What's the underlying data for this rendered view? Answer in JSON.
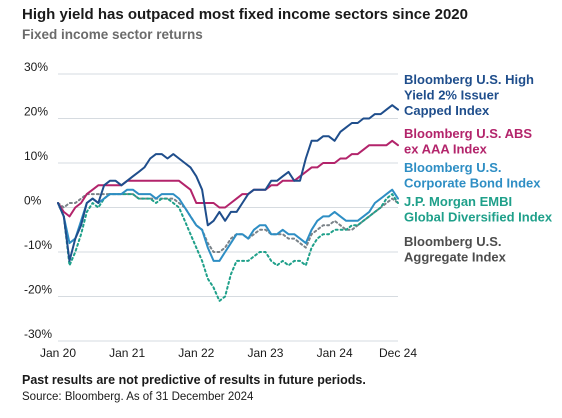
{
  "chart_data": {
    "type": "line",
    "title": "High yield has outpaced most fixed income sectors since 2020",
    "subtitle": "Fixed income sector returns",
    "note": "Past results are not predictive of results in future periods.",
    "source": "Source: Bloomberg. As of 31 December 2024",
    "x_tick_labels": [
      "Jan 20",
      "Jan 21",
      "Jan 22",
      "Jan 23",
      "Jan 24",
      "Dec 24"
    ],
    "y_tick_labels": [
      "30%",
      "20%",
      "10%",
      "0%",
      "-10%",
      "-20%",
      "-30%"
    ],
    "y_ticks": [
      30,
      20,
      10,
      0,
      -10,
      -20,
      -30
    ],
    "ylim": [
      -30,
      30
    ],
    "xlim": [
      0,
      59
    ],
    "x_tick_positions": [
      0,
      12,
      24,
      36,
      48,
      59
    ],
    "grid": "horizontal",
    "legend_placement": "right",
    "x": [
      0,
      1,
      2,
      3,
      4,
      5,
      6,
      7,
      8,
      9,
      10,
      11,
      12,
      13,
      14,
      15,
      16,
      17,
      18,
      19,
      20,
      21,
      22,
      23,
      24,
      25,
      26,
      27,
      28,
      29,
      30,
      31,
      32,
      33,
      34,
      35,
      36,
      37,
      38,
      39,
      40,
      41,
      42,
      43,
      44,
      45,
      46,
      47,
      48,
      49,
      50,
      51,
      52,
      53,
      54,
      55,
      56,
      57,
      58,
      59
    ],
    "series": [
      {
        "name": "Bloomberg U.S. High Yield 2% Issuer Capped Index",
        "color": "#1f4e8c",
        "style": "solid",
        "values": [
          1,
          -2,
          -12,
          -7,
          -4,
          1,
          2,
          1,
          5,
          6,
          6,
          5,
          6,
          7,
          8,
          9,
          11,
          12,
          12,
          11,
          12,
          11,
          10,
          9,
          7,
          4,
          -4,
          -3,
          -1,
          -3,
          -1,
          -1,
          1,
          3,
          4,
          4,
          4,
          6,
          6,
          7,
          8,
          6,
          6,
          11,
          15,
          15,
          16,
          16,
          15,
          17,
          18,
          19,
          19,
          20,
          20,
          21,
          21,
          22,
          23,
          22
        ]
      },
      {
        "name": "Bloomberg U.S. ABS ex AAA Index",
        "color": "#b3246b",
        "style": "solid",
        "values": [
          1,
          -1,
          -2,
          0,
          1,
          3,
          4,
          5,
          5,
          5,
          5,
          5,
          6,
          6,
          6,
          6,
          6,
          6,
          6,
          6,
          6,
          6,
          5,
          4,
          1,
          1,
          1,
          1,
          0,
          0,
          1,
          2,
          3,
          3,
          4,
          4,
          4,
          5,
          5,
          6,
          6,
          6,
          7,
          8,
          9,
          9,
          10,
          10,
          10,
          11,
          11,
          12,
          12,
          13,
          14,
          14,
          14,
          14,
          15,
          14
        ]
      },
      {
        "name": "Bloomberg U.S. Corporate Bond Index",
        "color": "#2e8ec4",
        "style": "solid",
        "values": [
          1,
          -2,
          -8,
          -7,
          -3,
          1,
          2,
          1,
          2,
          3,
          3,
          3,
          4,
          4,
          3,
          3,
          3,
          2,
          3,
          3,
          3,
          2,
          0,
          -2,
          -4,
          -5,
          -9,
          -12,
          -12,
          -10,
          -8,
          -6,
          -6,
          -7,
          -5,
          -4,
          -4,
          -6,
          -6,
          -5,
          -6,
          -6,
          -7,
          -8,
          -5,
          -3,
          -2,
          -2,
          -1,
          -2,
          -3,
          -3,
          -3,
          -2,
          -1,
          1,
          2,
          3,
          4,
          2
        ]
      },
      {
        "name": "J.P. Morgan EMBI Global Diversified Index",
        "color": "#1fa08a",
        "style": "dotted",
        "values": [
          1,
          -2,
          -13,
          -10,
          -6,
          -1,
          1,
          0,
          2,
          3,
          3,
          3,
          3,
          3,
          2,
          2,
          2,
          1,
          2,
          2,
          1,
          0,
          -3,
          -6,
          -9,
          -12,
          -16,
          -18,
          -21,
          -20,
          -15,
          -12,
          -12,
          -12,
          -11,
          -10,
          -10,
          -12,
          -13,
          -12,
          -13,
          -12,
          -12,
          -13,
          -9,
          -7,
          -6,
          -6,
          -5,
          -5,
          -5,
          -4,
          -4,
          -3,
          -2,
          -1,
          0,
          2,
          3,
          1
        ]
      },
      {
        "name": "Bloomberg U.S. Aggregate Index",
        "color": "#7a8288",
        "style": "dotted",
        "values": [
          1,
          0,
          1,
          1,
          2,
          3,
          3,
          3,
          3,
          3,
          3,
          3,
          3,
          3,
          2,
          2,
          2,
          2,
          2,
          2,
          2,
          1,
          0,
          -2,
          -4,
          -5,
          -8,
          -10,
          -10,
          -9,
          -7,
          -6,
          -6,
          -7,
          -6,
          -5,
          -5,
          -6,
          -6,
          -6,
          -7,
          -7,
          -8,
          -9,
          -6,
          -5,
          -4,
          -4,
          -3,
          -4,
          -5,
          -5,
          -4,
          -3,
          -2,
          -1,
          0,
          1,
          2,
          1
        ]
      }
    ],
    "legend": [
      {
        "lines": [
          "Bloomberg U.S. High",
          "Yield 2% Issuer",
          "Capped Index"
        ],
        "color": "#1f4e8c"
      },
      {
        "lines": [
          "Bloomberg U.S. ABS",
          "ex AAA Index"
        ],
        "color": "#b3246b"
      },
      {
        "lines": [
          "Bloomberg U.S.",
          "Corporate Bond Index"
        ],
        "color": "#2e8ec4"
      },
      {
        "lines": [
          "J.P. Morgan EMBI",
          "Global Diversified Index"
        ],
        "color": "#1fa08a"
      },
      {
        "lines": [
          "Bloomberg U.S.",
          "Aggregate Index"
        ],
        "color": "#4d4d4d"
      }
    ],
    "grid_color": "#d6dbe0"
  }
}
